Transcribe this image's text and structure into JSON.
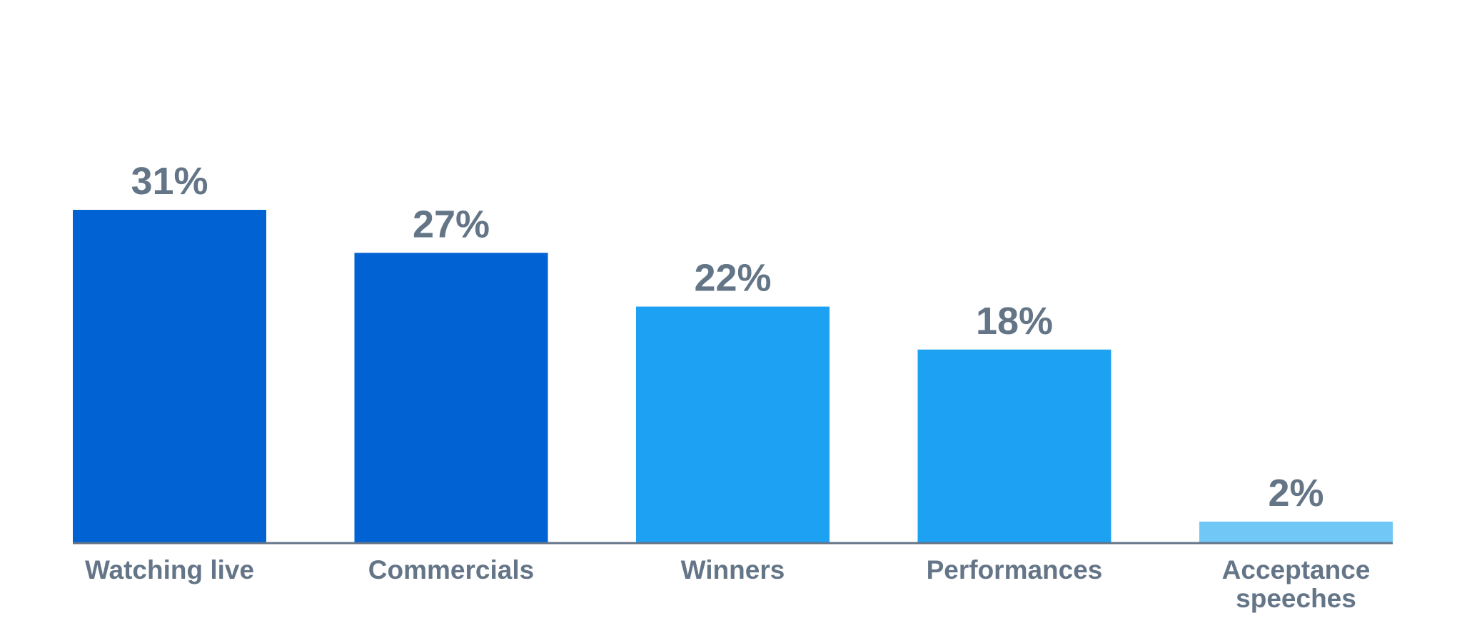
{
  "chart_data": {
    "type": "bar",
    "categories": [
      "Watching live",
      "Commercials",
      "Winners",
      "Performances",
      "Acceptance speeches"
    ],
    "values": [
      31,
      27,
      22,
      18,
      2
    ],
    "value_labels": [
      "31%",
      "27%",
      "22%",
      "18%",
      "2%"
    ],
    "colors": [
      "#0062d3",
      "#0062d3",
      "#1da1f2",
      "#1da1f2",
      "#71c7f5"
    ]
  }
}
